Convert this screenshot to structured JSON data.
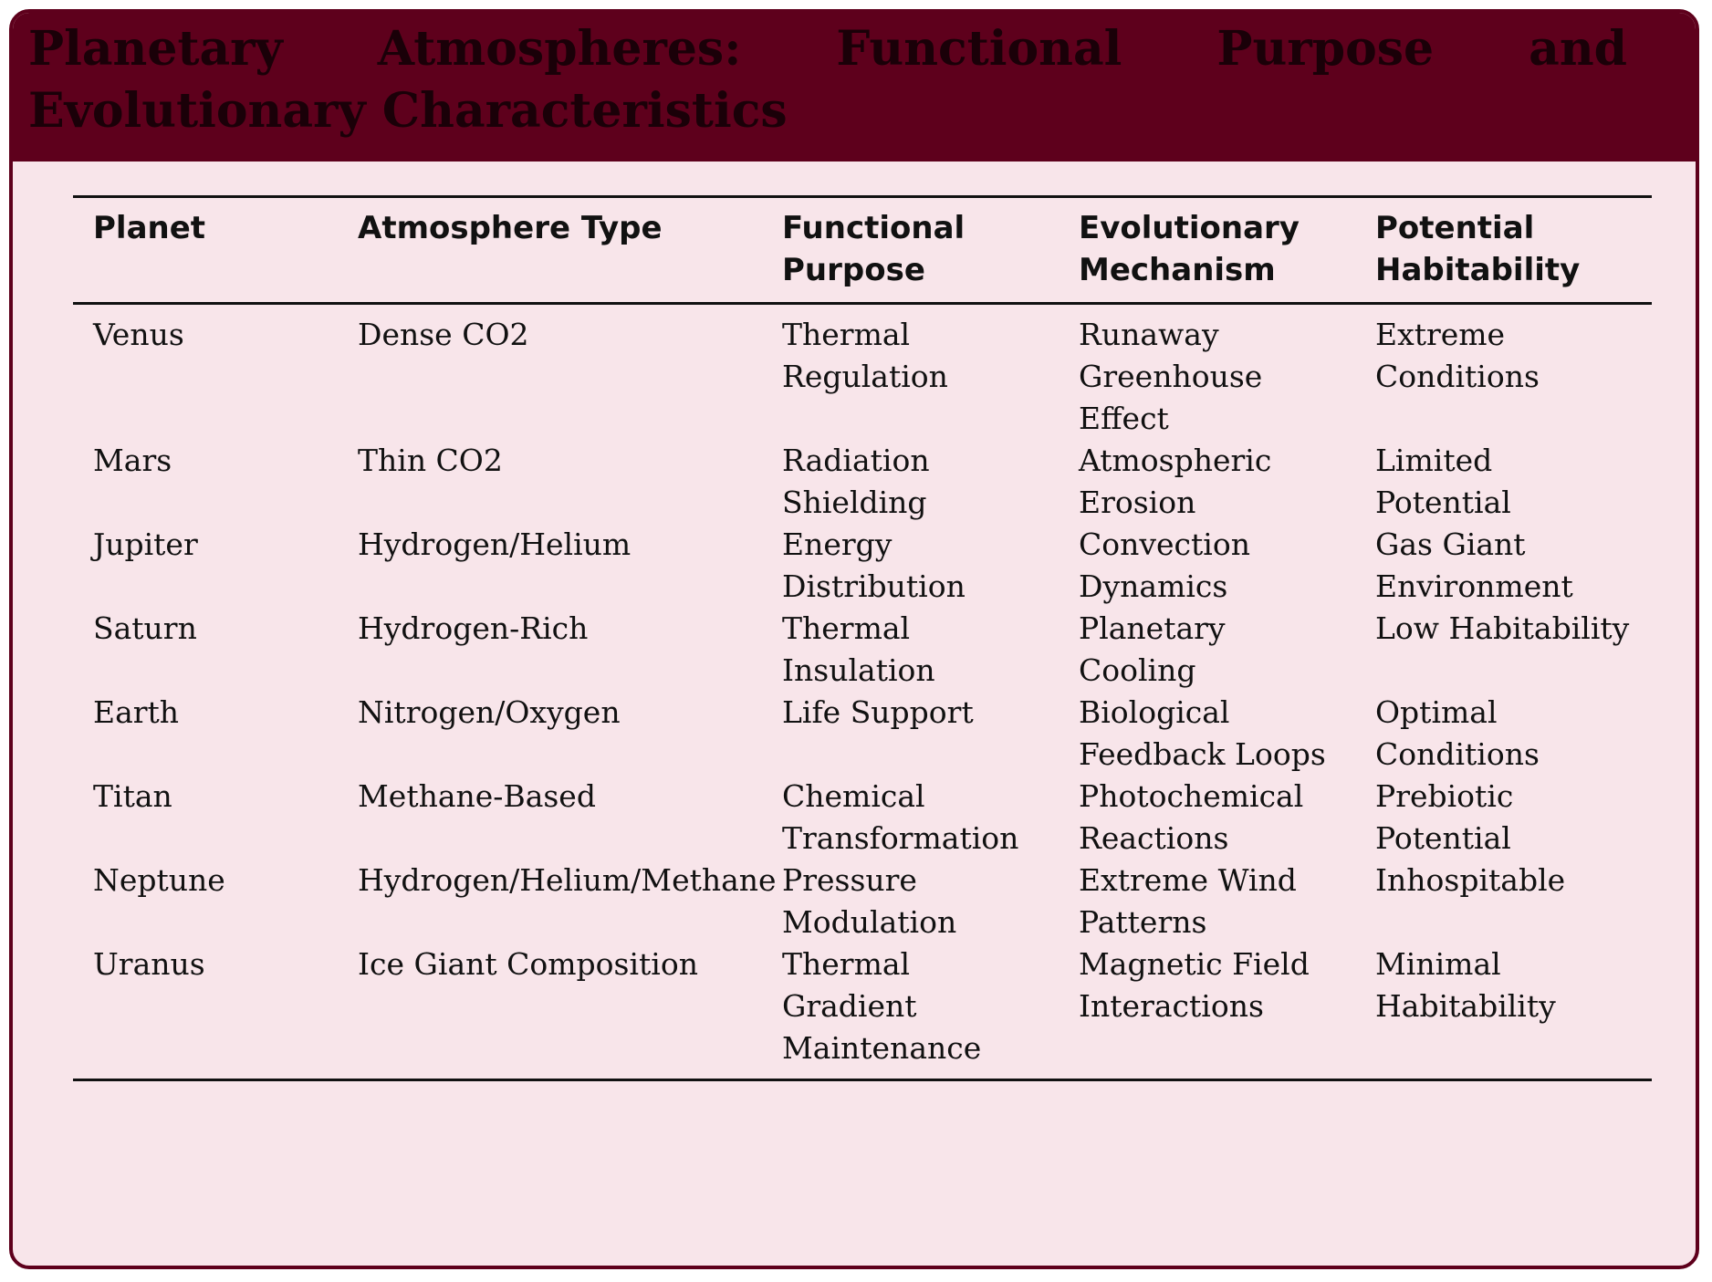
{
  "title": "Planetary Atmospheres: Functional Purpose and Evolutionary Characteristics",
  "table": {
    "headers": [
      "Planet",
      "Atmosphere Type",
      "Functional Purpose",
      "Evolutionary Mechanism",
      "Potential Habitability"
    ],
    "rows": [
      [
        "Venus",
        "Dense CO2",
        "Thermal Regulation",
        "Runaway Greenhouse Effect",
        "Extreme Conditions"
      ],
      [
        "Mars",
        "Thin CO2",
        "Radiation Shielding",
        "Atmospheric Erosion",
        "Limited Potential"
      ],
      [
        "Jupiter",
        "Hydrogen/Helium",
        "Energy Distribution",
        "Convection Dynamics",
        "Gas Giant Environment"
      ],
      [
        "Saturn",
        "Hydrogen-Rich",
        "Thermal Insulation",
        "Planetary Cooling",
        "Low Habitability"
      ],
      [
        "Earth",
        "Nitrogen/Oxygen",
        "Life Support",
        "Biological Feedback Loops",
        "Optimal Conditions"
      ],
      [
        "Titan",
        "Methane-Based",
        "Chemical Transformation",
        "Photochemical Reactions",
        "Prebiotic Potential"
      ],
      [
        "Neptune",
        "Hydrogen/Helium/Methane",
        "Pressure Modulation",
        "Extreme Wind Patterns",
        "Inhospitable"
      ],
      [
        "Uranus",
        "Ice Giant Composition",
        "Thermal Gradient Maintenance",
        "Magnetic Field Interactions",
        "Minimal Habitability"
      ]
    ]
  },
  "colors": {
    "frame": "#5e001c",
    "background": "#f8e5ea",
    "title_text": "#1a0008"
  }
}
